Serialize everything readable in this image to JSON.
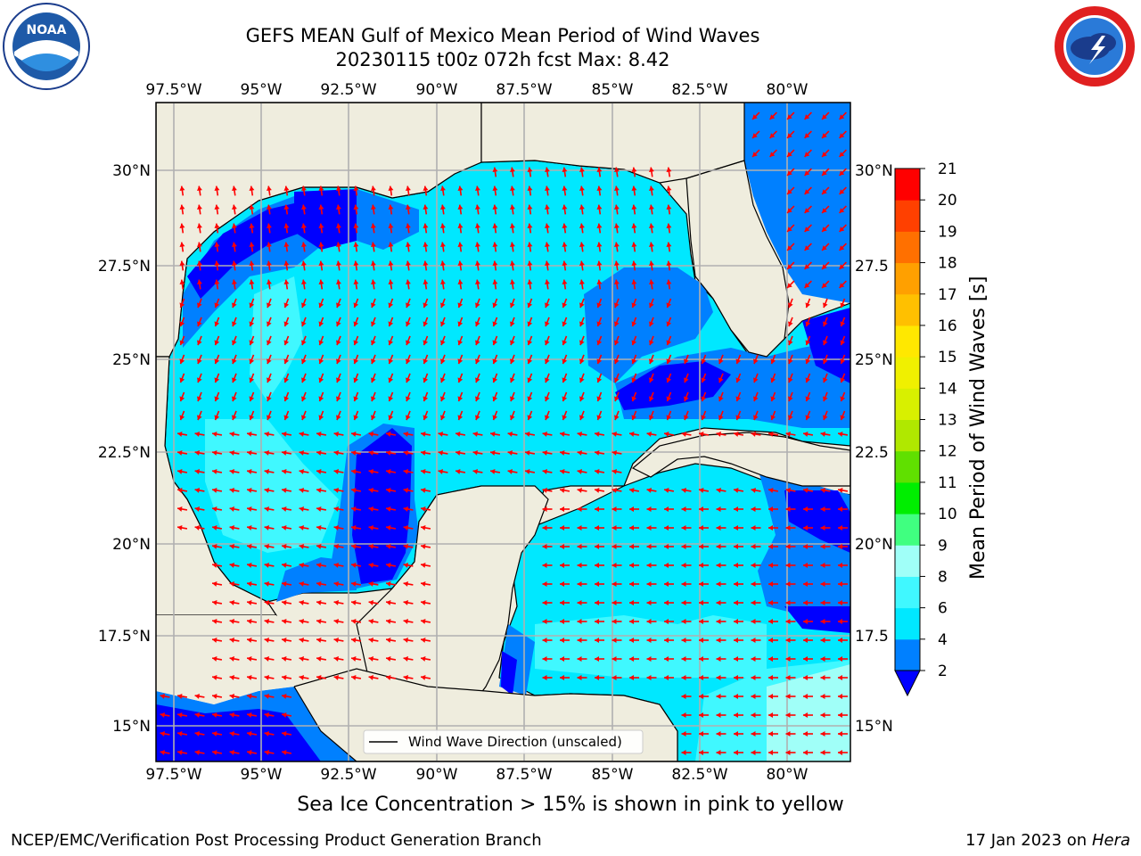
{
  "title": {
    "line1": "GEFS MEAN Gulf of Mexico Mean Period of Wind Waves",
    "line2": "20230115 t00z 072h fcst   Max: 8.42"
  },
  "logos": {
    "left": "noaa-logo",
    "right": "national-weather-service-logo"
  },
  "map": {
    "lon_labels": [
      "97.5°W",
      "95°W",
      "92.5°W",
      "90°W",
      "87.5°W",
      "85°W",
      "82.5°W",
      "80°W"
    ],
    "lat_labels_left": [
      "30°N",
      "27.5°N",
      "25°N",
      "22.5°N",
      "20°N",
      "17.5°N",
      "15°N"
    ],
    "lat_labels_right": [
      "30°N",
      "27.5",
      "25°N",
      "22.5",
      "20°N",
      "17.5",
      "15°N"
    ],
    "lon_range": [
      -98,
      -78.5
    ],
    "lat_range": [
      14,
      31.8
    ],
    "legend": "Wind Wave Direction (unscaled)",
    "land_color": "#efedde",
    "arrow_color": "#ff0000"
  },
  "colorbar": {
    "label": "Mean Period of Wind Waves [s]",
    "ticks": [
      "2",
      "4",
      "6",
      "8",
      "9",
      "10",
      "11",
      "12",
      "13",
      "14",
      "15",
      "16",
      "17",
      "18",
      "19",
      "20",
      "21"
    ],
    "colors": [
      "#0000ff",
      "#0080ff",
      "#00e8ff",
      "#40f8ff",
      "#a0fff8",
      "#40ff80",
      "#00ee00",
      "#60e000",
      "#b0e800",
      "#d8f000",
      "#f0f000",
      "#ffe800",
      "#ffc000",
      "#ffa000",
      "#ff7000",
      "#ff4000",
      "#ff0000"
    ]
  },
  "note": "Sea Ice Concentration > 15% is shown in pink to yellow",
  "footer": {
    "left": "NCEP/EMC/Verification Post Processing Product Generation Branch",
    "right_prefix": "17 Jan 2023 on ",
    "right_machine": "Hera"
  }
}
